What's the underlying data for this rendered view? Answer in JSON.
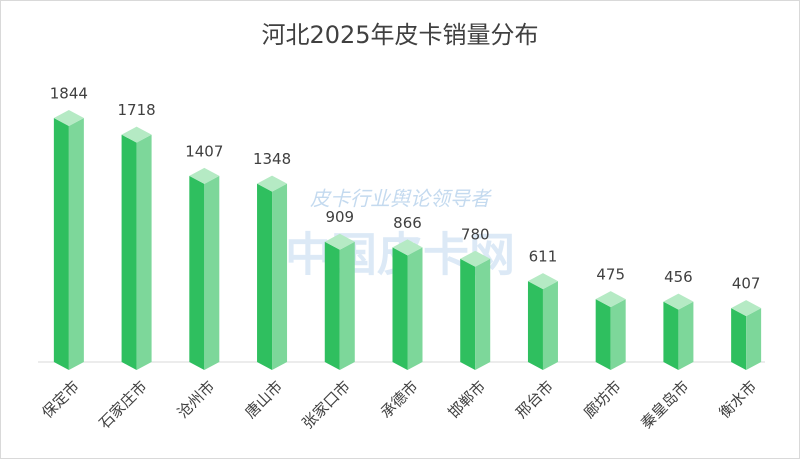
{
  "chart_data": {
    "type": "bar",
    "title": "河北2025年皮卡销量分布",
    "watermark": "中国皮卡网",
    "watermark_subtitle": "皮卡行业舆论领导者",
    "categories": [
      "保定市",
      "石家庄市",
      "沧州市",
      "唐山市",
      "张家口市",
      "承德市",
      "邯郸市",
      "邢台市",
      "廊坊市",
      "秦皇岛市",
      "衡水市"
    ],
    "values": [
      1844,
      1718,
      1407,
      1348,
      909,
      866,
      780,
      611,
      475,
      456,
      407
    ],
    "color": "#2fbf5f"
  }
}
